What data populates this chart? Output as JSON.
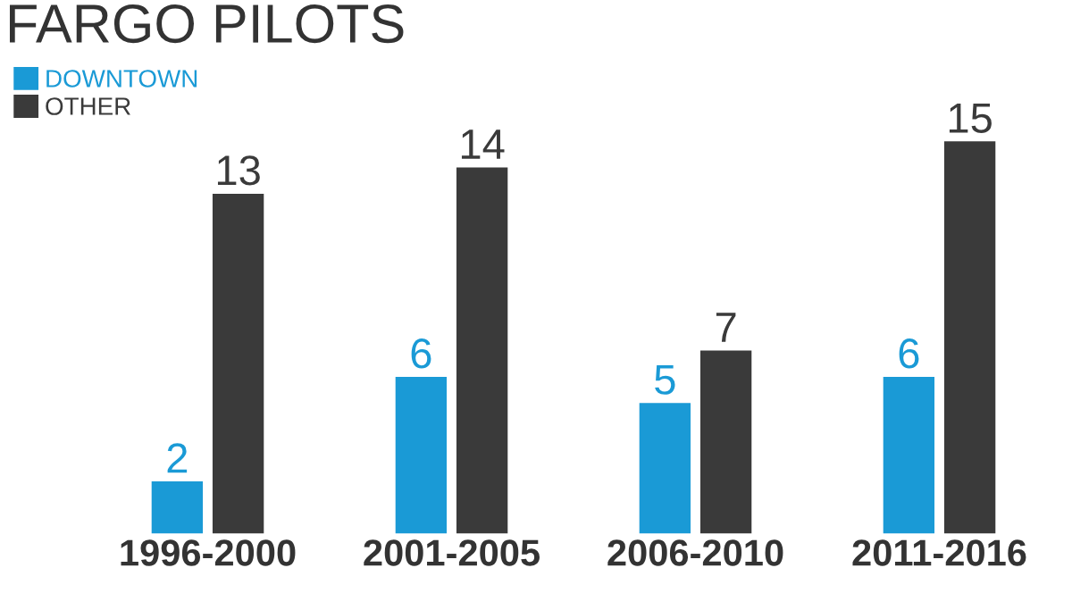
{
  "chart_data": {
    "type": "bar",
    "title": "FARGO PILOTS",
    "categories": [
      "1996-2000",
      "2001-2005",
      "2006-2010",
      "2011-2016"
    ],
    "series": [
      {
        "name": "DOWNTOWN",
        "color": "#1a9ad6",
        "values": [
          2,
          6,
          5,
          6
        ]
      },
      {
        "name": "OTHER",
        "color": "#3a3a3a",
        "values": [
          13,
          14,
          7,
          15
        ]
      }
    ],
    "data_labels": true,
    "legend": "top left",
    "grid": false
  }
}
